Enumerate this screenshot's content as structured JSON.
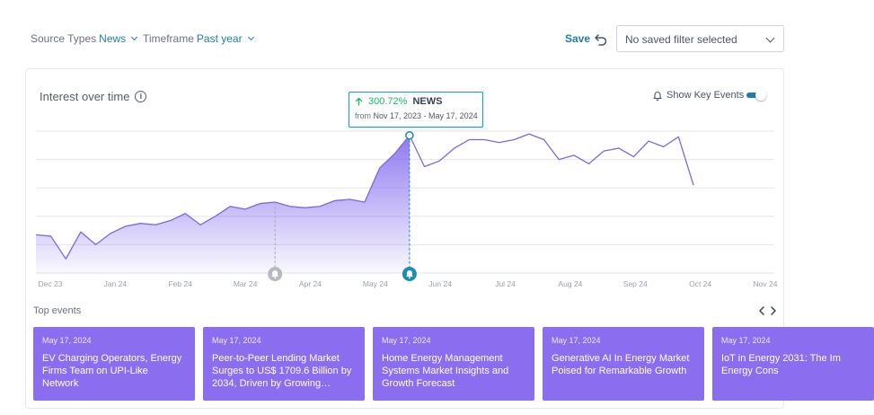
{
  "filters": {
    "source_types": {
      "label": "Source Types",
      "value": "News"
    },
    "timeframe": {
      "label": "Timeframe",
      "value": "Past year"
    }
  },
  "save_label": "Save",
  "icons": {
    "undo": "undo-icon",
    "info": "info-icon",
    "bell": "bell-icon",
    "arrow_up": "arrow-up-icon",
    "chevron_left": "chevron-left-icon",
    "chevron_right": "chevron-right-icon"
  },
  "saved_filter": {
    "value": "No saved filter selected"
  },
  "panel": {
    "title": "Interest over time",
    "key_events_label": "Show Key Events",
    "key_events_on": true
  },
  "colors": {
    "accent": "#1d7fa6",
    "line": "#7b68e0",
    "card": "#8b6ef0",
    "up": "#18b86c",
    "tooltip_border": "#1aa0b8"
  },
  "tooltip": {
    "pct": "300.72%",
    "label": "NEWS",
    "from_label": "from",
    "range": "Nov 17, 2023 - May 17, 2024"
  },
  "chart_data": {
    "type": "area",
    "x_tick_labels": [
      "Dec 23",
      "Jan 24",
      "Feb 24",
      "Mar 24",
      "Apr 24",
      "May 24",
      "Jun 24",
      "Jul 24",
      "Aug 24",
      "Sep 24",
      "Oct 24",
      "Nov 24"
    ],
    "ylim": [
      0,
      100
    ],
    "grid": true,
    "legend": "none",
    "series": [
      {
        "values": [
          27,
          26,
          10,
          29,
          20,
          28,
          33,
          35,
          34,
          37,
          42,
          34,
          40,
          47,
          45,
          49,
          50,
          47,
          46,
          47,
          51,
          52,
          50,
          74,
          84,
          97,
          75,
          79,
          88,
          94,
          94,
          92,
          94,
          98,
          94,
          80,
          83,
          77,
          86,
          88,
          82,
          93,
          89,
          96,
          62
        ],
        "filled_until_index": 25
      }
    ],
    "key_events": [
      {
        "index": 16,
        "type": "past"
      },
      {
        "index": 25,
        "type": "selected"
      }
    ]
  },
  "top_events": {
    "label": "Top events",
    "cards": [
      {
        "date": "May 17, 2024",
        "title": "EV Charging Operators, Energy Firms Team on UPI-Like Network"
      },
      {
        "date": "May 17, 2024",
        "title": "Peer-to-Peer Lending Market Surges to US$ 1709.6 Billion by 2034, Driven by Growing…"
      },
      {
        "date": "May 17, 2024",
        "title": "Home Energy Management Systems Market Insights and Growth Forecast"
      },
      {
        "date": "May 17, 2024",
        "title": "Generative AI In Energy Market Poised for Remarkable Growth"
      },
      {
        "date": "May 17, 2024",
        "title": "IoT in Energy 2031: The Im Energy Cons"
      }
    ]
  }
}
